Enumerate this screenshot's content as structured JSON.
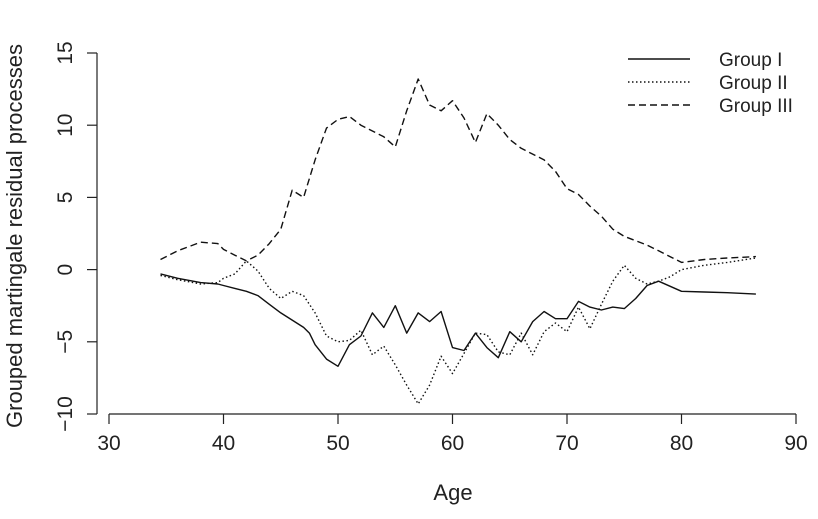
{
  "chart_data": {
    "type": "line",
    "title": "",
    "xlabel": "Age",
    "ylabel": "Grouped martingale residual processes",
    "xlim": [
      30,
      90
    ],
    "ylim": [
      -10,
      15
    ],
    "x_ticks": [
      "30",
      "40",
      "50",
      "60",
      "70",
      "80",
      "90"
    ],
    "y_ticks": [
      "−10",
      "−5",
      "0",
      "5",
      "10",
      "15"
    ],
    "grid": false,
    "legend_position": "top-right",
    "series": [
      {
        "name": "Group I",
        "style": "solid",
        "x": [
          34.5,
          36,
          38,
          39.5,
          40,
          41,
          42,
          43,
          44,
          45,
          46,
          47,
          47.5,
          48,
          49,
          50,
          51,
          52,
          53,
          54,
          55,
          56,
          57,
          58,
          59,
          60,
          61,
          62,
          63,
          64,
          65,
          66,
          67,
          68,
          69,
          70,
          71,
          72,
          73,
          74,
          75,
          76,
          77,
          78,
          80,
          82,
          84,
          86.5
        ],
        "y": [
          -0.3,
          -0.6,
          -0.9,
          -1.0,
          -1.1,
          -1.3,
          -1.5,
          -1.8,
          -2.4,
          -3.0,
          -3.5,
          -4.0,
          -4.4,
          -5.2,
          -6.2,
          -6.7,
          -5.2,
          -4.6,
          -3.0,
          -4.0,
          -2.5,
          -4.4,
          -3.0,
          -3.6,
          -2.9,
          -5.4,
          -5.6,
          -4.4,
          -5.4,
          -6.1,
          -4.3,
          -5.0,
          -3.6,
          -2.9,
          -3.4,
          -3.4,
          -2.2,
          -2.6,
          -2.8,
          -2.6,
          -2.7,
          -2.0,
          -1.1,
          -0.8,
          -1.5,
          -1.55,
          -1.6,
          -1.7
        ]
      },
      {
        "name": "Group II",
        "style": "dotted",
        "x": [
          34.5,
          36,
          38,
          39.5,
          40,
          41,
          42,
          43,
          44,
          45,
          46,
          47,
          48,
          49,
          50,
          51,
          52,
          53,
          54,
          55,
          56,
          57,
          58,
          59,
          60,
          61,
          62,
          63,
          64,
          65,
          66,
          67,
          68,
          69,
          70,
          71,
          72,
          73,
          74,
          75,
          76,
          77,
          78,
          79,
          80,
          82,
          84,
          86.5
        ],
        "y": [
          -0.4,
          -0.7,
          -1.0,
          -0.9,
          -0.6,
          -0.3,
          0.6,
          -0.1,
          -1.3,
          -2.0,
          -1.5,
          -1.8,
          -3.0,
          -4.6,
          -5.0,
          -4.9,
          -4.2,
          -5.9,
          -5.3,
          -6.6,
          -8.0,
          -9.3,
          -8.0,
          -6.0,
          -7.2,
          -5.8,
          -4.4,
          -4.5,
          -5.7,
          -5.9,
          -4.4,
          -5.9,
          -4.3,
          -3.7,
          -4.3,
          -2.6,
          -4.1,
          -2.4,
          -0.8,
          0.3,
          -0.6,
          -1.0,
          -0.8,
          -0.5,
          0.0,
          0.3,
          0.5,
          0.8
        ]
      },
      {
        "name": "Group III",
        "style": "dashed",
        "x": [
          34.5,
          36,
          38,
          39.5,
          40,
          41,
          42,
          43,
          44,
          45,
          46,
          47,
          48,
          49,
          50,
          51,
          52,
          53,
          54,
          55,
          56,
          57,
          58,
          59,
          60,
          61,
          62,
          63,
          64,
          65,
          66,
          67,
          68,
          69,
          70,
          71,
          72,
          73,
          74,
          75,
          76,
          77,
          78,
          79,
          80,
          82,
          84,
          86.5
        ],
        "y": [
          0.7,
          1.3,
          1.9,
          1.8,
          1.4,
          1.0,
          0.6,
          1.0,
          1.8,
          2.8,
          5.5,
          5.0,
          7.6,
          9.8,
          10.4,
          10.6,
          10.0,
          9.6,
          9.2,
          8.5,
          11.0,
          13.2,
          11.4,
          11.0,
          11.7,
          10.5,
          8.8,
          10.8,
          10.0,
          9.0,
          8.4,
          8.0,
          7.6,
          6.8,
          5.6,
          5.2,
          4.4,
          3.7,
          2.8,
          2.3,
          2.0,
          1.7,
          1.3,
          0.9,
          0.5,
          0.7,
          0.8,
          0.9
        ]
      }
    ]
  }
}
